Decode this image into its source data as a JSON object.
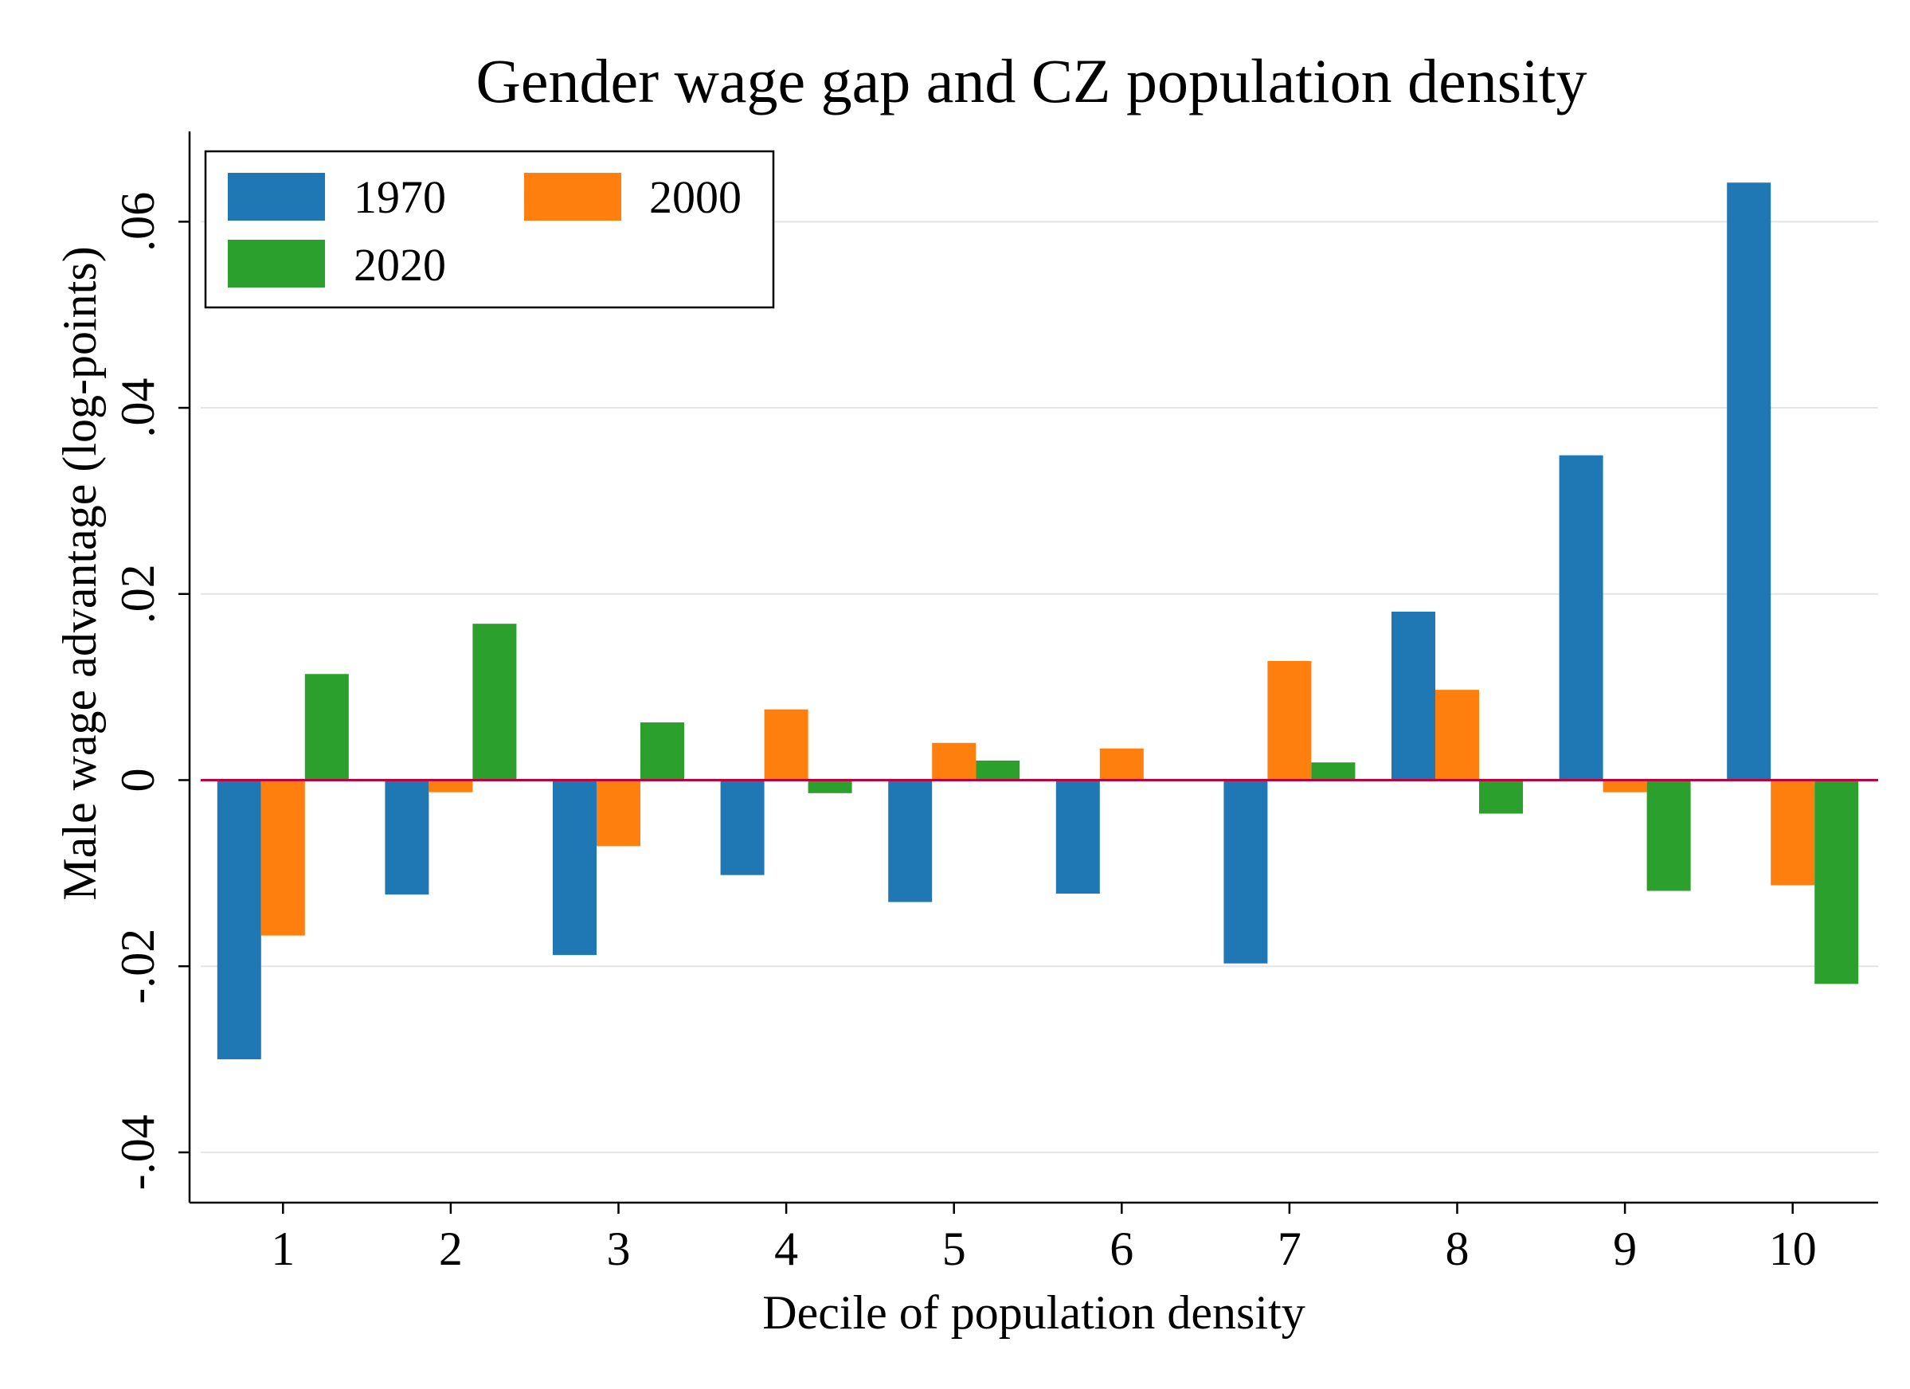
{
  "chart_data": {
    "type": "bar",
    "title": "Gender wage gap and CZ population density",
    "xlabel": "Decile of population density",
    "ylabel": "Male wage advantage (log-points)",
    "categories": [
      "1",
      "2",
      "3",
      "4",
      "5",
      "6",
      "7",
      "8",
      "9",
      "10"
    ],
    "series": [
      {
        "name": "1970",
        "color": "#1f77b4",
        "values": [
          -0.03,
          -0.0123,
          -0.0188,
          -0.0102,
          -0.0131,
          -0.0122,
          -0.0197,
          0.0181,
          0.0349,
          0.0642
        ]
      },
      {
        "name": "2000",
        "color": "#ff7f0e",
        "values": [
          -0.0167,
          -0.0013,
          -0.0071,
          0.0076,
          0.004,
          0.0034,
          0.0128,
          0.0097,
          -0.0013,
          -0.0113
        ]
      },
      {
        "name": "2020",
        "color": "#2ca02c",
        "values": [
          0.0114,
          0.0168,
          0.0062,
          -0.0014,
          0.0021,
          0.0001,
          0.0019,
          -0.0036,
          -0.0119,
          -0.0219
        ]
      }
    ],
    "yticks": [
      -0.04,
      -0.02,
      0,
      0.02,
      0.04,
      0.06
    ],
    "ytick_labels": [
      "-.04",
      "-.02",
      "0",
      ".02",
      ".04",
      ".06"
    ],
    "ylim": [
      -0.0454,
      0.0697
    ],
    "grid": true,
    "zero_line_color": "#c0003c",
    "legend_position": "top-left"
  }
}
